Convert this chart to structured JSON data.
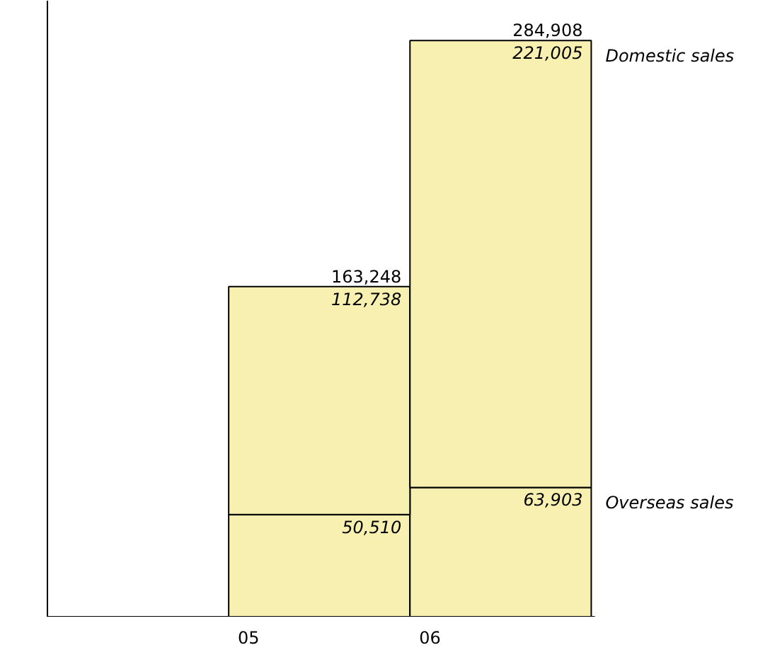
{
  "chart_data": {
    "type": "bar",
    "stacked": true,
    "categories": [
      null,
      "05",
      "06"
    ],
    "series": [
      {
        "name": "Overseas sales",
        "color": "#f8f0b0",
        "values": [
          null,
          50510,
          63903
        ],
        "value_labels": [
          null,
          "50,510",
          "63,903"
        ]
      },
      {
        "name": "Domestic sales",
        "color": "#f8f0b0",
        "values": [
          null,
          112738,
          221005
        ],
        "value_labels": [
          null,
          "112,738",
          "221,005"
        ]
      }
    ],
    "totals": [
      null,
      "163,248",
      "284,908"
    ],
    "tick_labels": "x",
    "grid": false
  }
}
